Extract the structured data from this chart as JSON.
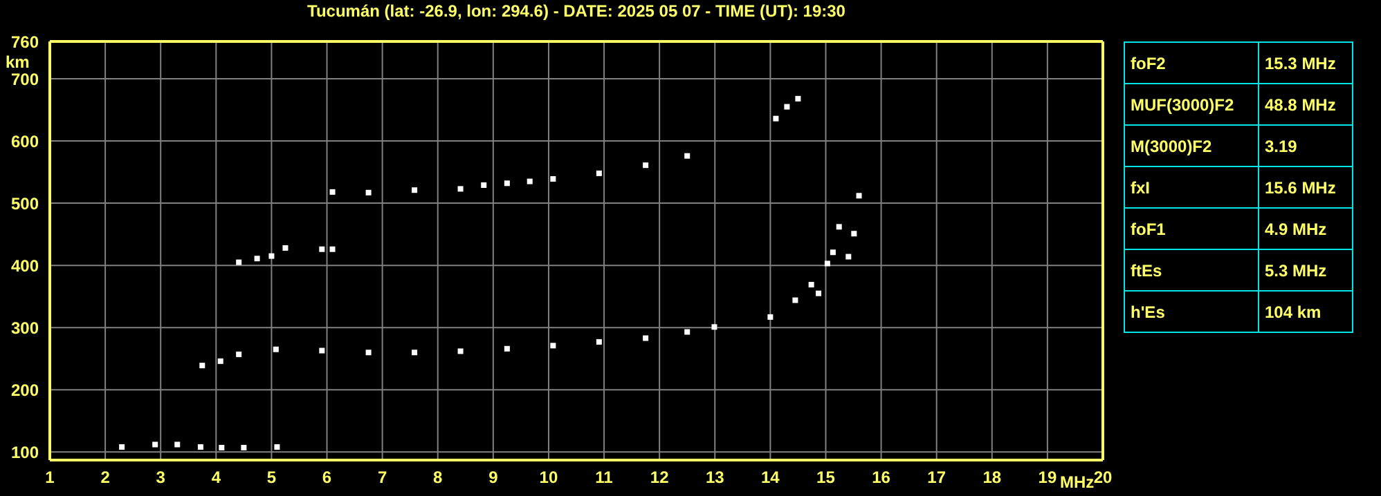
{
  "chart_data": [
    {
      "type": "scatter",
      "title": "Tucumán (lat: -26.9, lon: 294.6) - DATE: 2025 05 07 - TIME (UT): 19:30",
      "xlabel": "MHz",
      "ylabel": "km",
      "marker": "square",
      "grid": true,
      "xlim": [
        1,
        20
      ],
      "ylim": [
        87,
        760
      ],
      "xticks": [
        1,
        2,
        3,
        4,
        5,
        6,
        7,
        8,
        9,
        10,
        11,
        12,
        13,
        14,
        15,
        16,
        17,
        18,
        19,
        20
      ],
      "yticks": [
        100,
        200,
        300,
        400,
        500,
        600,
        700,
        760
      ],
      "series": [
        {
          "color": "#ffffff",
          "x": [
            2.3,
            2.9,
            3.3,
            3.72,
            4.1,
            4.5,
            5.1
          ],
          "values": [
            108,
            112,
            112,
            108,
            107,
            107,
            108
          ]
        },
        {
          "color": "#ffffff",
          "x": [
            3.75,
            4.08,
            4.41,
            5.08,
            5.91,
            6.75,
            7.58,
            8.41,
            9.25,
            10.08,
            10.91,
            11.75,
            12.5,
            12.99,
            14.0,
            14.45,
            14.74,
            15.03,
            15.13,
            15.24
          ],
          "values": [
            239,
            246,
            257,
            265,
            263,
            260,
            260,
            262,
            266,
            271,
            277,
            283,
            293,
            301,
            317,
            344,
            369,
            403,
            421,
            462
          ]
        },
        {
          "color": "#ffffff",
          "x": [
            14.87,
            15.41,
            15.51,
            15.6
          ],
          "values": [
            355,
            414,
            451,
            512
          ]
        },
        {
          "color": "#ffffff",
          "x": [
            4.41,
            4.74,
            5.0,
            5.25,
            5.91,
            6.1
          ],
          "values": [
            405,
            411,
            415,
            428,
            426,
            426
          ]
        },
        {
          "color": "#ffffff",
          "x": [
            6.1,
            6.75,
            7.58,
            8.41,
            8.83,
            9.25,
            9.66,
            10.08,
            10.91,
            11.75,
            12.5
          ],
          "values": [
            518,
            517,
            521,
            523,
            529,
            532,
            535,
            539,
            548,
            561,
            576
          ]
        },
        {
          "color": "#ffffff",
          "x": [
            14.1,
            14.3,
            14.5
          ],
          "values": [
            636,
            655,
            668
          ]
        }
      ]
    },
    {
      "type": "other",
      "categories": [
        "foF2",
        "MUF(3000)F2",
        "M(3000)F2",
        "fxI",
        "foF1",
        "ftEs",
        "h'Es"
      ],
      "value_labels": [
        "15.3 MHz",
        "48.8 MHz",
        "3.19",
        "15.6 MHz",
        "4.9 MHz",
        "5.3 MHz",
        "104 km"
      ]
    }
  ]
}
